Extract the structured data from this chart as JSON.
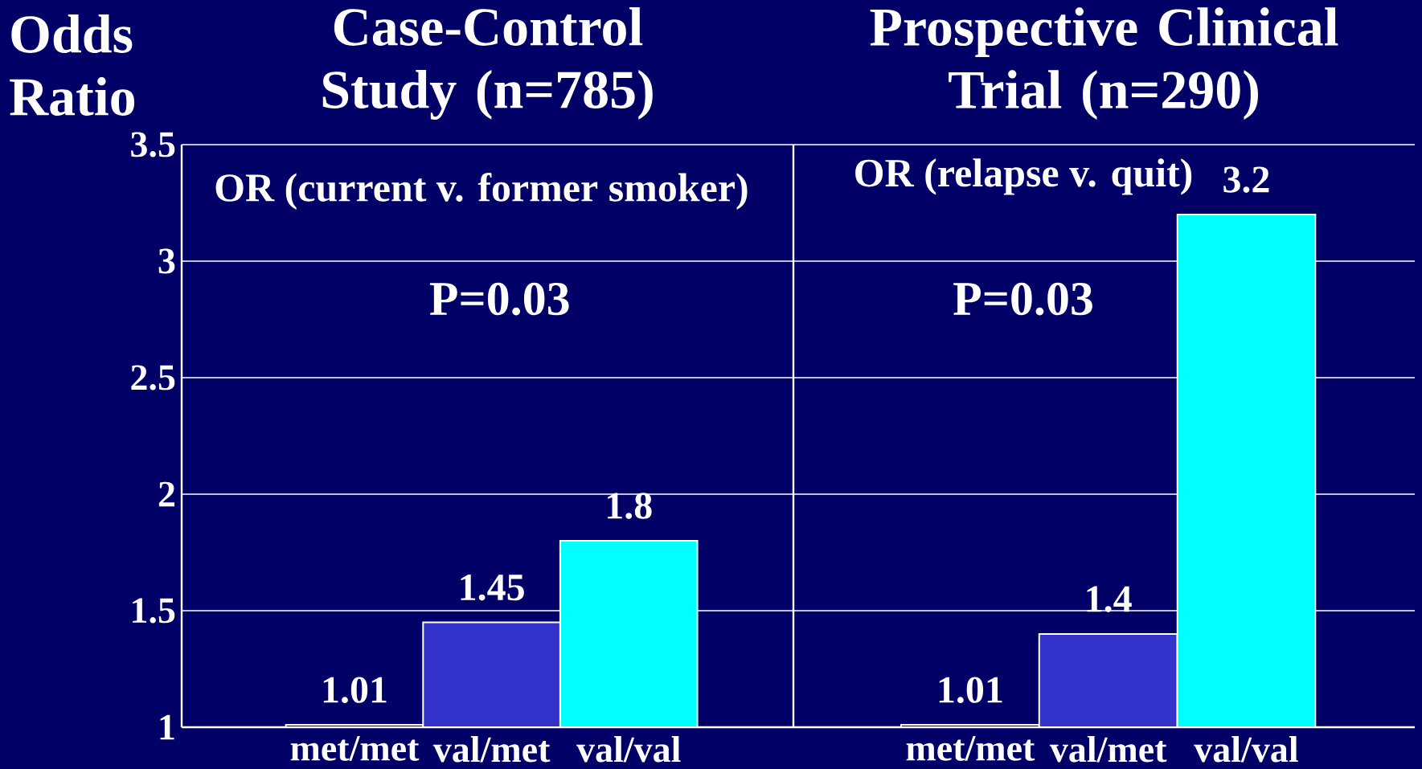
{
  "chart_data": [
    {
      "type": "bar",
      "title": "Case-Control Study (n=785)",
      "ylabel": "Odds Ratio",
      "categories": [
        "met/met",
        "val/met",
        "val/val"
      ],
      "values": [
        1.01,
        1.45,
        1.8
      ],
      "colors": [
        "#000066",
        "#3333cc",
        "#00ffff"
      ],
      "ylim": [
        1,
        3.5
      ],
      "yticks": [
        1,
        1.5,
        2,
        2.5,
        3,
        3.5
      ],
      "grid": "y",
      "data_labels": true,
      "annotations": [
        "OR (current v. former smoker)",
        "P=0.03"
      ]
    },
    {
      "type": "bar",
      "title": "Prospective Clinical Trial (n=290)",
      "categories": [
        "met/met",
        "val/met",
        "val/val"
      ],
      "values": [
        1.01,
        1.4,
        3.2
      ],
      "colors": [
        "#000066",
        "#3333cc",
        "#00ffff"
      ],
      "ylim": [
        1,
        3.5
      ],
      "yticks": [
        1,
        1.5,
        2,
        2.5,
        3,
        3.5
      ],
      "grid": "y",
      "data_labels": true,
      "tick_labels": "x",
      "annotations": [
        "OR (relapse v. quit)",
        "P=0.03"
      ]
    }
  ]
}
